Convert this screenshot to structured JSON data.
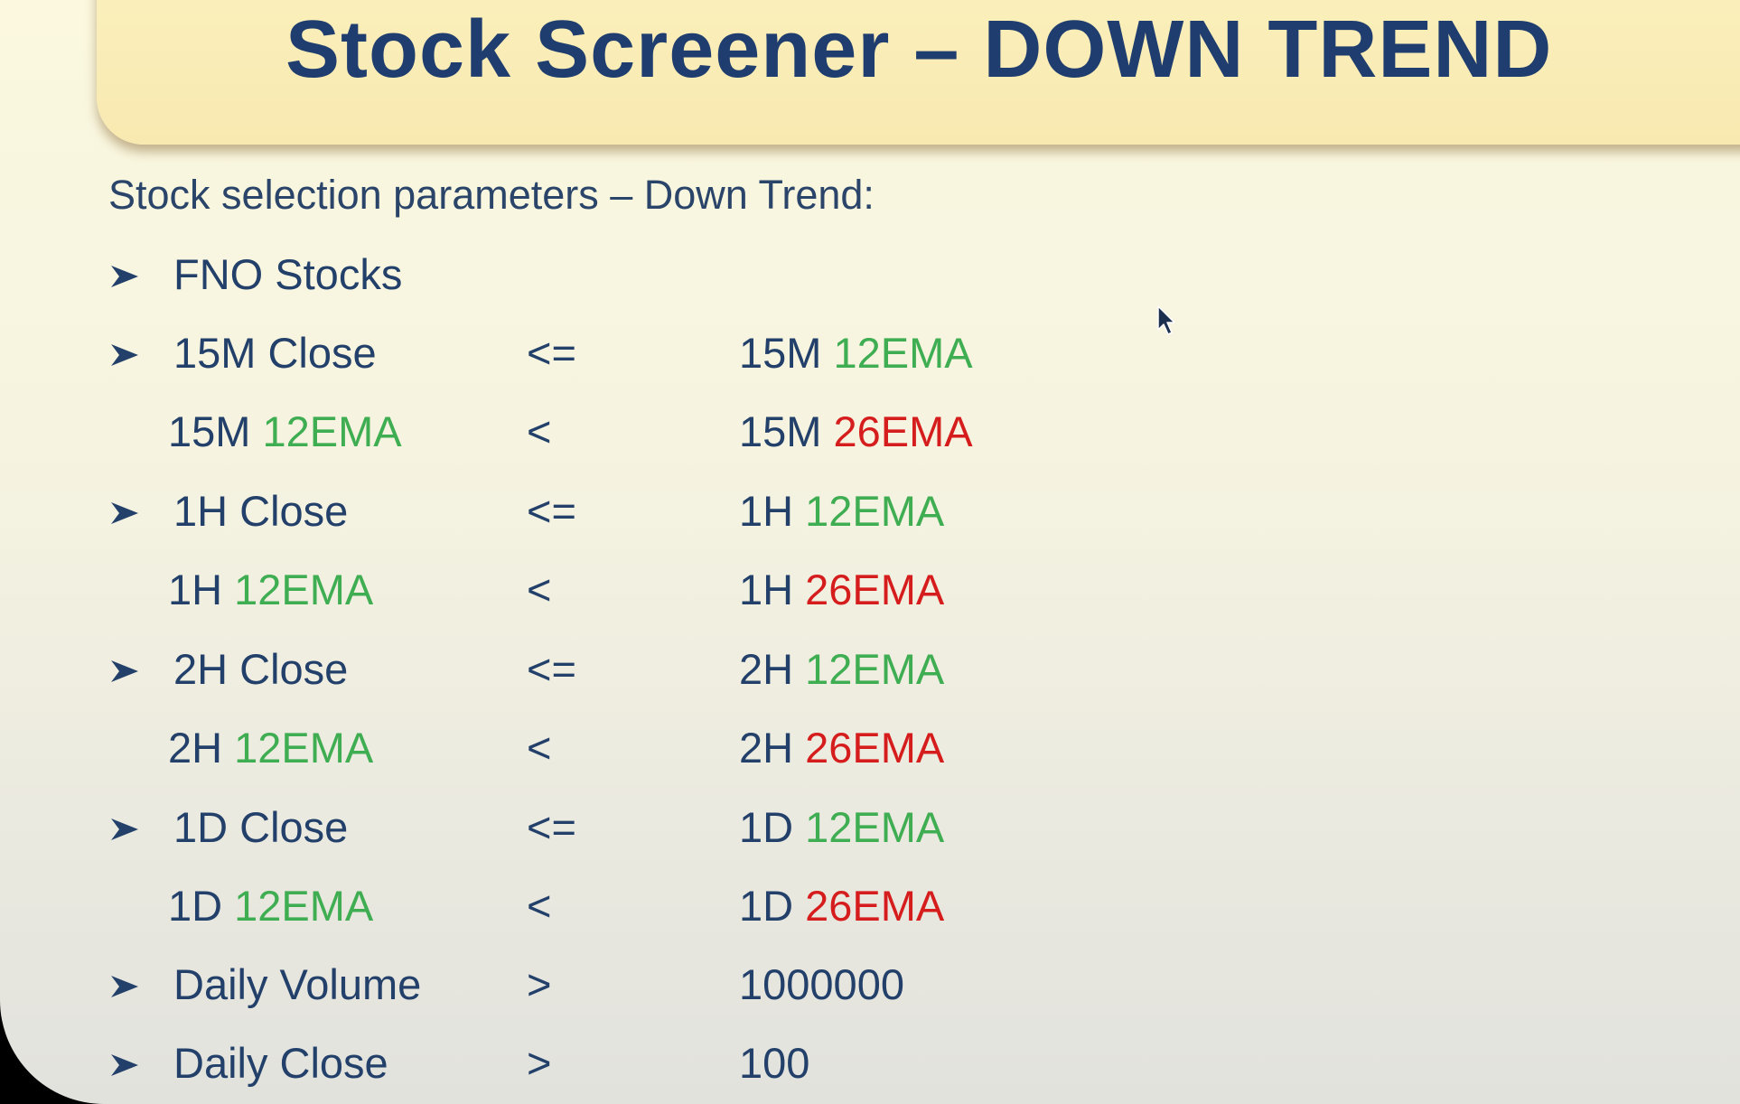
{
  "title": "Stock Screener – DOWN TREND",
  "subtitle": "Stock selection parameters – Down Trend:",
  "colors": {
    "title": "#1f3d6e",
    "text": "#22406a",
    "green_ema": "#3fad52",
    "red_ema": "#d61d1d"
  },
  "bullet_icon": "arrowhead-bullet-icon",
  "rows": [
    {
      "bullet": true,
      "left_prefix": "FNO Stocks",
      "left_ema": "",
      "op": "",
      "right_prefix": "",
      "right_ema": ""
    },
    {
      "bullet": true,
      "left_prefix": "15M Close",
      "left_ema": "",
      "op": "<=",
      "right_prefix": "15M ",
      "right_ema": "12EMA"
    },
    {
      "bullet": false,
      "left_prefix": "15M ",
      "left_ema": "12EMA",
      "op": "<",
      "right_prefix": "15M ",
      "right_ema": "26EMA"
    },
    {
      "bullet": true,
      "left_prefix": "1H Close",
      "left_ema": "",
      "op": "<=",
      "right_prefix": "1H ",
      "right_ema": "12EMA"
    },
    {
      "bullet": false,
      "left_prefix": "1H ",
      "left_ema": "12EMA",
      "op": "<",
      "right_prefix": "1H ",
      "right_ema": "26EMA"
    },
    {
      "bullet": true,
      "left_prefix": "2H Close",
      "left_ema": "",
      "op": "<=",
      "right_prefix": "2H ",
      "right_ema": "12EMA"
    },
    {
      "bullet": false,
      "left_prefix": "2H ",
      "left_ema": "12EMA",
      "op": "<",
      "right_prefix": "2H ",
      "right_ema": "26EMA"
    },
    {
      "bullet": true,
      "left_prefix": "1D Close",
      "left_ema": "",
      "op": "<=",
      "right_prefix": "1D ",
      "right_ema": "12EMA"
    },
    {
      "bullet": false,
      "left_prefix": "1D ",
      "left_ema": "12EMA",
      "op": "<",
      "right_prefix": "1D ",
      "right_ema": "26EMA"
    },
    {
      "bullet": true,
      "left_prefix": "Daily Volume",
      "left_ema": "",
      "op": ">",
      "right_prefix": "1000000",
      "right_ema": ""
    },
    {
      "bullet": true,
      "left_prefix": "Daily Close",
      "left_ema": "",
      "op": ">",
      "right_prefix": "100",
      "right_ema": ""
    }
  ]
}
